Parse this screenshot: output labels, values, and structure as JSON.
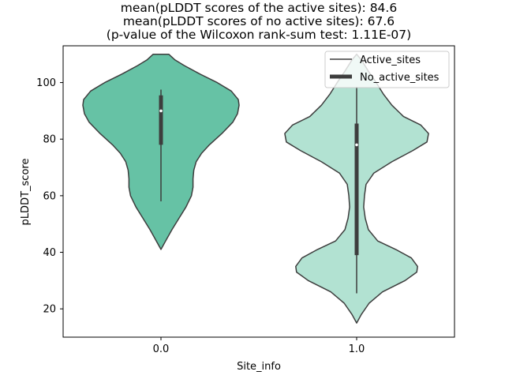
{
  "chart_data": {
    "type": "violin",
    "title_lines": [
      "mean(pLDDT scores of the active sites): 84.6",
      "mean(pLDDT scores of no active sites): 67.6",
      "(p-value of the Wilcoxon rank-sum test: 1.11E-07)"
    ],
    "xlabel": "Site_info",
    "ylabel": "pLDDT_score",
    "ylim": [
      10,
      113
    ],
    "yticks": [
      20,
      40,
      60,
      80,
      100
    ],
    "categories": [
      "0.0",
      "1.0"
    ],
    "legend": {
      "position": "top-right",
      "entries": [
        {
          "label": "Active_sites",
          "style": "thin-line"
        },
        {
          "label": "No_active_sites",
          "style": "thick-line"
        }
      ]
    },
    "violins": [
      {
        "category": "0.0",
        "color": "#66c2a5",
        "min": 41,
        "max": 110,
        "q1": 78,
        "median": 90,
        "q3": 95.5,
        "whisker_low": 58,
        "whisker_high": 97.5,
        "profile": [
          [
            41,
            0
          ],
          [
            44,
            0.06
          ],
          [
            48,
            0.14
          ],
          [
            52,
            0.23
          ],
          [
            56,
            0.32
          ],
          [
            60,
            0.39
          ],
          [
            63,
            0.41
          ],
          [
            66,
            0.41
          ],
          [
            69,
            0.42
          ],
          [
            72,
            0.45
          ],
          [
            75,
            0.52
          ],
          [
            78,
            0.62
          ],
          [
            82,
            0.78
          ],
          [
            86,
            0.92
          ],
          [
            89,
            0.98
          ],
          [
            92,
            1.0
          ],
          [
            94,
            0.99
          ],
          [
            97,
            0.9
          ],
          [
            100,
            0.72
          ],
          [
            103,
            0.5
          ],
          [
            106,
            0.3
          ],
          [
            108,
            0.18
          ],
          [
            110,
            0.1
          ]
        ]
      },
      {
        "category": "1.0",
        "color": "#b2e2d2",
        "min": 15,
        "max": 110,
        "q1": 39,
        "median": 78,
        "q3": 85.5,
        "whisker_low": 25.5,
        "whisker_high": 98.5,
        "profile": [
          [
            15,
            0
          ],
          [
            18,
            0.06
          ],
          [
            22,
            0.16
          ],
          [
            26,
            0.33
          ],
          [
            30,
            0.62
          ],
          [
            33,
            0.77
          ],
          [
            35,
            0.78
          ],
          [
            38,
            0.7
          ],
          [
            41,
            0.5
          ],
          [
            44,
            0.27
          ],
          [
            48,
            0.15
          ],
          [
            52,
            0.11
          ],
          [
            56,
            0.09
          ],
          [
            60,
            0.1
          ],
          [
            64,
            0.12
          ],
          [
            68,
            0.22
          ],
          [
            72,
            0.45
          ],
          [
            76,
            0.72
          ],
          [
            79,
            0.9
          ],
          [
            82,
            0.92
          ],
          [
            85,
            0.82
          ],
          [
            88,
            0.6
          ],
          [
            92,
            0.45
          ],
          [
            96,
            0.34
          ],
          [
            100,
            0.25
          ],
          [
            104,
            0.15
          ],
          [
            108,
            0.06
          ],
          [
            110,
            0
          ]
        ]
      }
    ]
  }
}
